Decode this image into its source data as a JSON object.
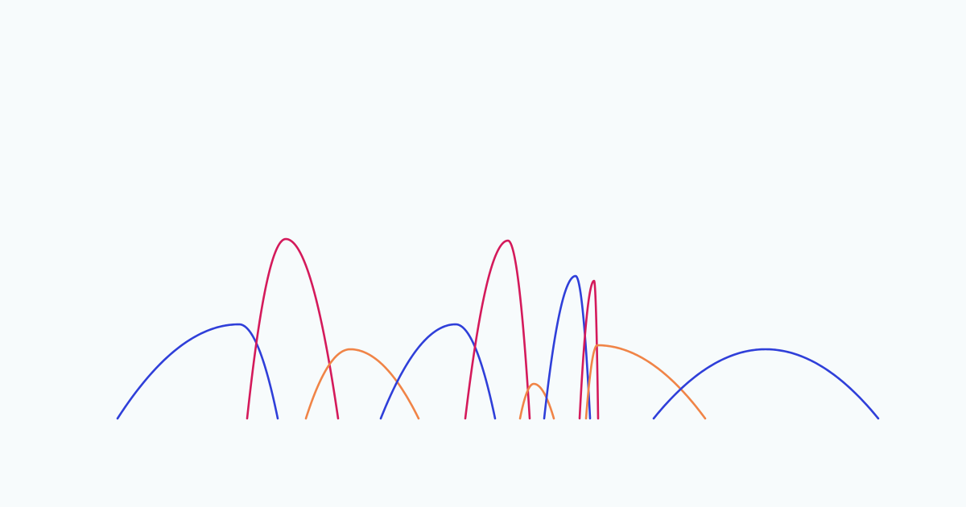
{
  "background": "#f7fbfc",
  "palette": {
    "blue": "#2f3fd9",
    "crimson": "#d41a5b",
    "orange": "#f08447"
  },
  "arcs": [
    {
      "id": "arc-blue-1",
      "color": "blue"
    },
    {
      "id": "arc-crimson-1",
      "color": "crimson"
    },
    {
      "id": "arc-orange-1",
      "color": "orange"
    },
    {
      "id": "arc-blue-2",
      "color": "blue"
    },
    {
      "id": "arc-crimson-2",
      "color": "crimson"
    },
    {
      "id": "arc-orange-2",
      "color": "orange"
    },
    {
      "id": "arc-blue-3",
      "color": "blue"
    },
    {
      "id": "arc-crimson-3",
      "color": "crimson"
    },
    {
      "id": "arc-orange-3",
      "color": "orange"
    },
    {
      "id": "arc-blue-4",
      "color": "blue"
    }
  ]
}
